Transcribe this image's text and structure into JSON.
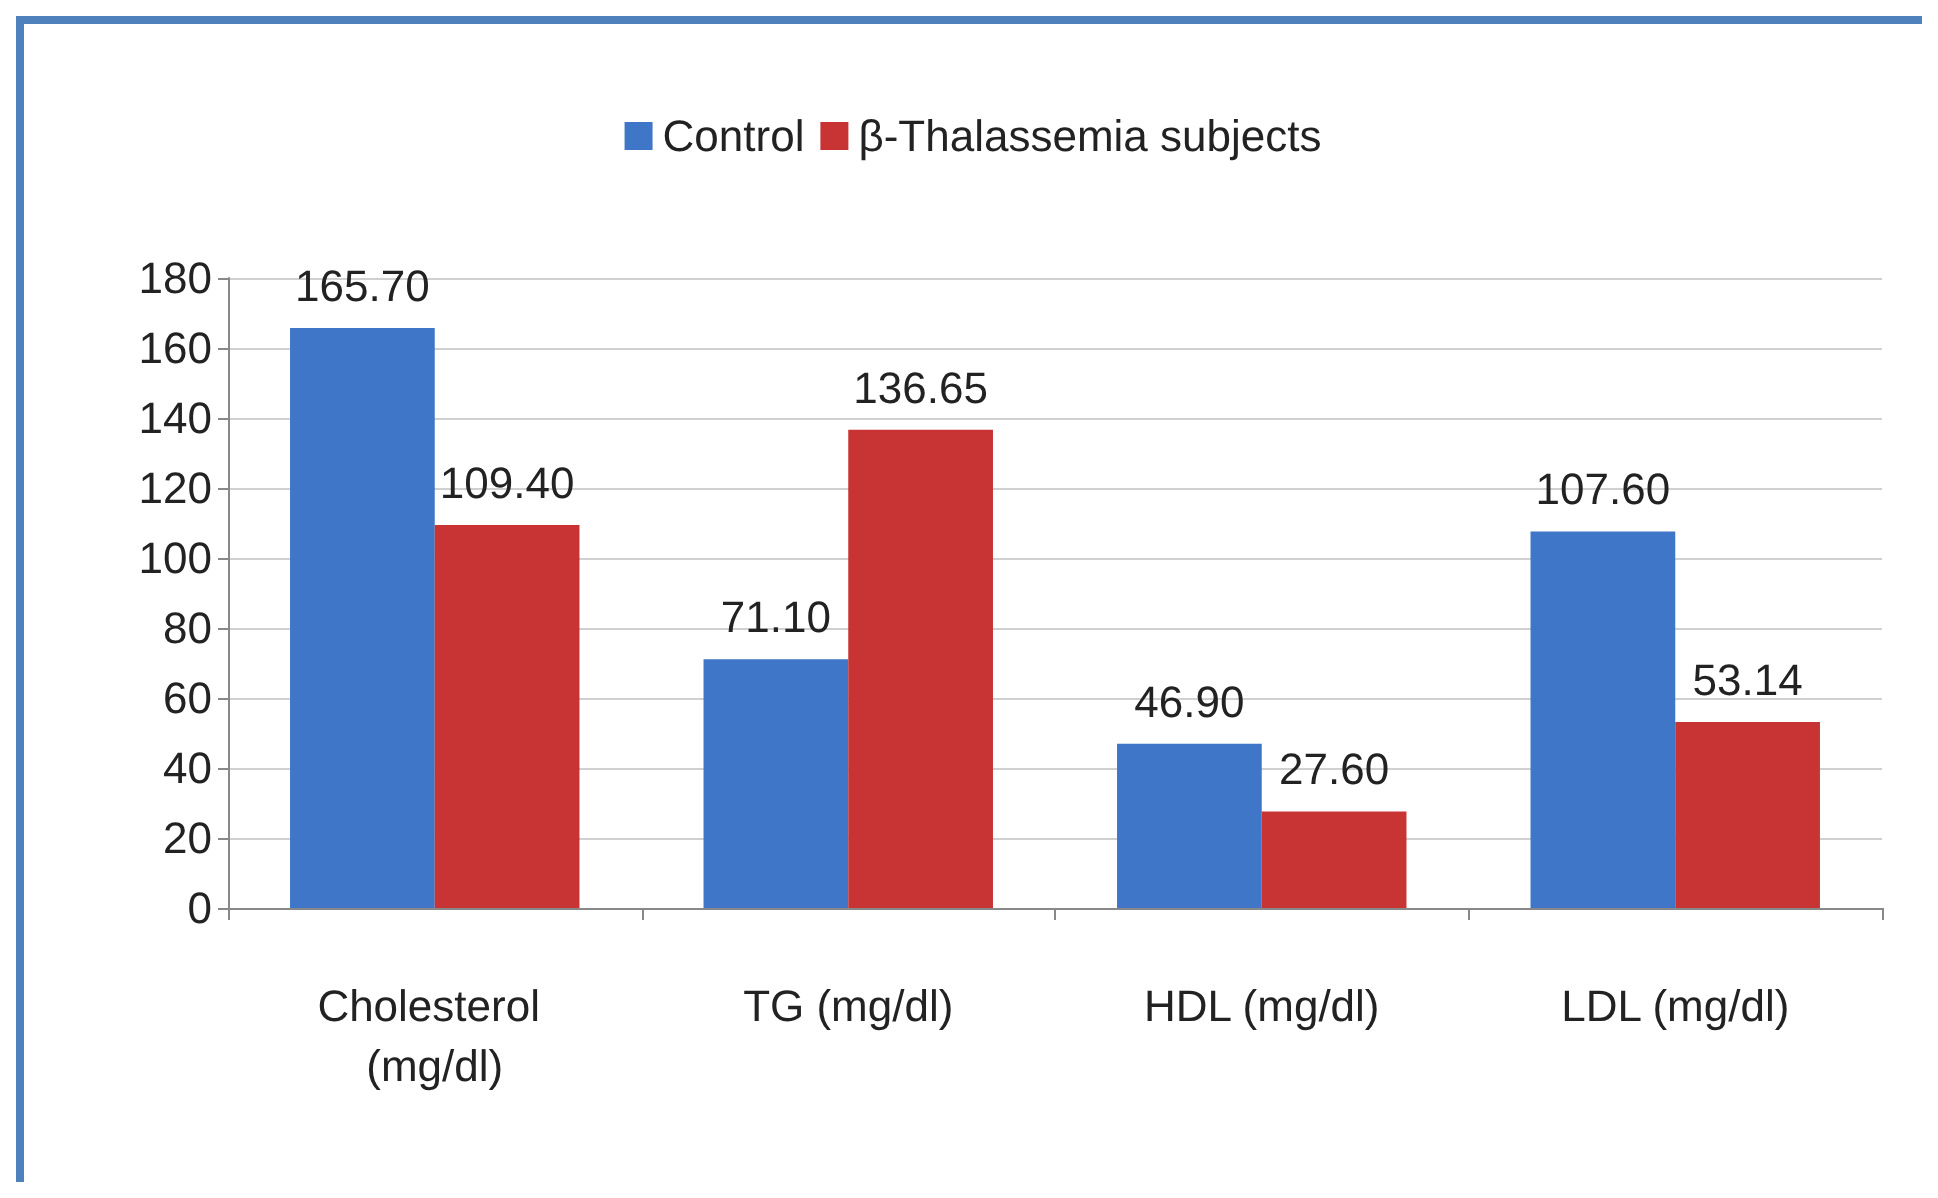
{
  "chart_data": {
    "type": "bar",
    "categories": [
      "Cholesterol (mg/dl)",
      "TG (mg/dl)",
      "HDL (mg/dl)",
      "LDL (mg/dl)"
    ],
    "series": [
      {
        "name": "Control",
        "color": "#3f76c8",
        "values": [
          165.7,
          71.1,
          46.9,
          107.6
        ],
        "value_labels": [
          "165.70",
          "71.10",
          "46.90",
          "107.60"
        ]
      },
      {
        "name": "β-Thalassemia subjects",
        "color": "#c83434",
        "values": [
          109.4,
          136.65,
          27.6,
          53.14
        ],
        "value_labels": [
          "109.40",
          "136.65",
          "27.60",
          "53.14"
        ]
      }
    ],
    "ylim": [
      0,
      180
    ],
    "yticks": [
      0,
      20,
      40,
      60,
      80,
      100,
      120,
      140,
      160,
      180
    ],
    "grid": "y",
    "legend": "top"
  }
}
